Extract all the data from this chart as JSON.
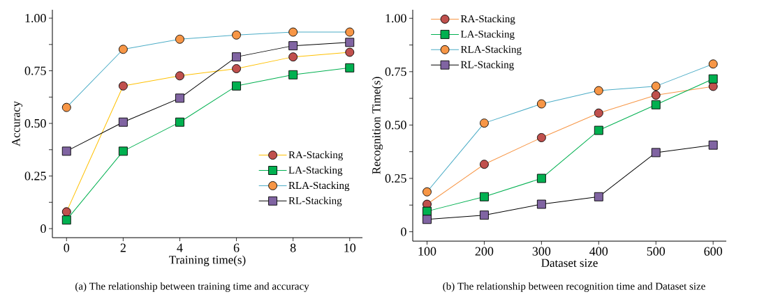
{
  "chart_data": [
    {
      "type": "line",
      "xlabel": "Training time(s)",
      "ylabel": "Accuracy",
      "annotations": [
        "(a) The relationship between training time and accuracy"
      ],
      "x": [
        0,
        2,
        4,
        6,
        8,
        10
      ],
      "xlim": [
        -0.5,
        10.45
      ],
      "xticks": [
        0,
        2,
        4,
        6,
        8,
        10
      ],
      "ylim": [
        -0.043,
        1.04
      ],
      "yticks": [
        0,
        {
          "value": 0.125,
          "label": null
        },
        0.25,
        {
          "value": 0.375,
          "label": null
        },
        {
          "value": 0.5,
          "label": "0.50"
        },
        {
          "value": 0.625,
          "label": null
        },
        0.75,
        {
          "value": 0.875,
          "label": null
        },
        {
          "value": 1.0,
          "label": "1.00"
        }
      ],
      "legend": "bottom right",
      "series": [
        {
          "name": "RA-Stacking",
          "color": "#ffc000",
          "colors": [
            "#c0504d",
            "#c0504d",
            "#c0504d",
            "#c0504d",
            "#c0504d",
            "#c0504d"
          ],
          "marker": "circle",
          "values": [
            0.08,
            0.678,
            0.726,
            0.76,
            0.816,
            0.838
          ]
        },
        {
          "name": "LA-Stacking",
          "color": "#00b050",
          "colors": [
            "#00b050",
            "#00b050",
            "#00b050",
            "#00b050",
            "#00b050",
            "#00b050"
          ],
          "marker": "square",
          "values": [
            0.041,
            0.368,
            0.506,
            0.678,
            0.731,
            0.764
          ]
        },
        {
          "name": "RLA-Stacking",
          "color": "#4bacc6",
          "colors": [
            "#f79646",
            "#f79646",
            "#f79646",
            "#f79646",
            "#f79646",
            "#f79646"
          ],
          "marker": "circle",
          "values": [
            0.576,
            0.852,
            0.9,
            0.92,
            0.934,
            0.934
          ]
        },
        {
          "name": "RL-Stacking",
          "color": "#000000",
          "colors": [
            "#8064a2",
            "#8064a2",
            "#8064a2",
            "#8064a2",
            "#8064a2",
            "#8064a2"
          ],
          "marker": "square",
          "values": [
            0.368,
            0.506,
            0.62,
            0.816,
            0.869,
            0.885
          ]
        }
      ]
    },
    {
      "type": "line",
      "xlabel": "Dataset size",
      "ylabel": "Recognition Time(s)",
      "annotations": [
        "(b) The relationship between recognition time and Dataset size"
      ],
      "x": [
        100,
        200,
        300,
        400,
        500,
        600
      ],
      "xlim": [
        75,
        623
      ],
      "xticks": [
        100,
        200,
        300,
        400,
        500,
        600
      ],
      "ylim": [
        -0.044,
        1.04
      ],
      "yticks": [
        0,
        {
          "value": 0.125,
          "label": null
        },
        0.25,
        {
          "value": 0.375,
          "label": null
        },
        {
          "value": 0.5,
          "label": "0.50"
        },
        {
          "value": 0.625,
          "label": null
        },
        0.75,
        {
          "value": 0.875,
          "label": null
        },
        {
          "value": 1.0,
          "label": "1.00"
        }
      ],
      "legend": "top left",
      "series": [
        {
          "name": "RA-Stacking",
          "color": "#f79646",
          "colors": [
            "#c0504d",
            "#c0504d",
            "#c0504d",
            "#c0504d",
            "#c0504d",
            "#c0504d"
          ],
          "marker": "circle",
          "values": [
            0.129,
            0.316,
            0.441,
            0.556,
            0.64,
            0.681
          ]
        },
        {
          "name": "LA-Stacking",
          "color": "#00b050",
          "colors": [
            "#00b050",
            "#00b050",
            "#00b050",
            "#00b050",
            "#00b050",
            "#00b050"
          ],
          "marker": "square",
          "values": [
            0.096,
            0.164,
            0.25,
            0.475,
            0.595,
            0.716
          ]
        },
        {
          "name": "RLA-Stacking",
          "color": "#4bacc6",
          "colors": [
            "#f79646",
            "#f79646",
            "#f79646",
            "#f79646",
            "#f79646",
            "#f79646"
          ],
          "marker": "circle",
          "values": [
            0.187,
            0.509,
            0.599,
            0.661,
            0.682,
            0.786
          ]
        },
        {
          "name": "RL-Stacking",
          "color": "#000000",
          "colors": [
            "#8064a2",
            "#8064a2",
            "#8064a2",
            "#8064a2",
            "#8064a2",
            "#8064a2"
          ],
          "marker": "square",
          "values": [
            0.058,
            0.078,
            0.129,
            0.164,
            0.371,
            0.406
          ]
        }
      ]
    }
  ]
}
